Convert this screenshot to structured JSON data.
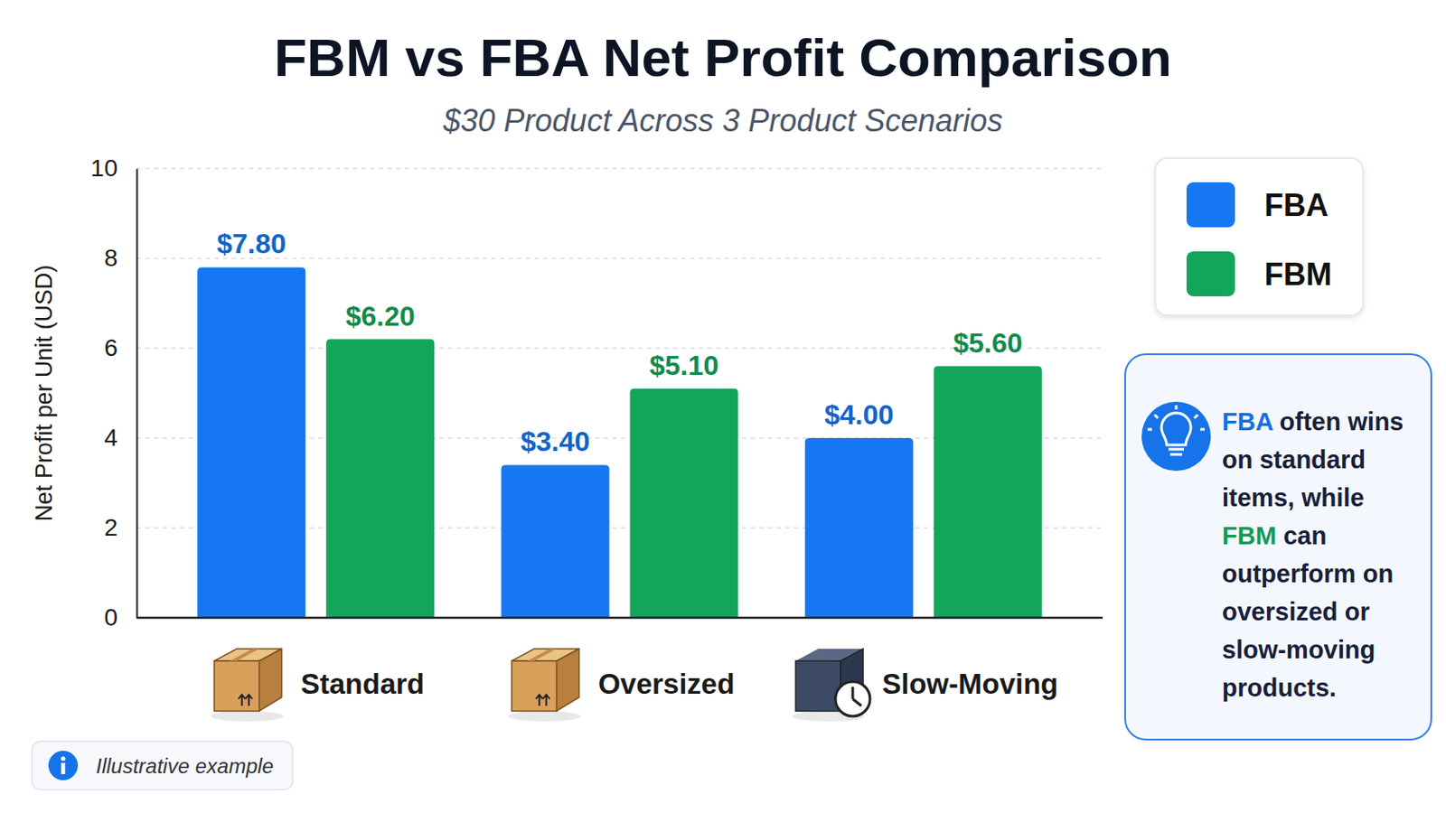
{
  "chart_data": {
    "type": "bar",
    "title": "FBM vs FBA Net Profit Comparison",
    "subtitle": "$30 Product Across 3 Product Scenarios",
    "y_label": "Net Profit per Unit (USD)",
    "categories": [
      "Standard",
      "Oversized",
      "Slow-Moving"
    ],
    "series": [
      {
        "name": "FBA",
        "color": "#1677f2",
        "values": [
          7.8,
          3.4,
          4.0
        ],
        "value_labels": [
          "$7.80",
          "$3.40",
          "$4.00"
        ]
      },
      {
        "name": "FBM",
        "color": "#13a65b",
        "values": [
          6.2,
          5.1,
          5.6
        ],
        "value_labels": [
          "$6.20",
          "$5.10",
          "$5.60"
        ]
      }
    ],
    "ylim": [
      0,
      10
    ],
    "yticks": [
      0,
      2,
      4,
      6,
      8,
      10
    ],
    "grid": true,
    "legend": "upper right",
    "data_labels": true,
    "annotations": [
      "FBA often wins on standard items, while FBM can outperform on oversized or slow-moving products.",
      "Illustrative example"
    ]
  }
}
